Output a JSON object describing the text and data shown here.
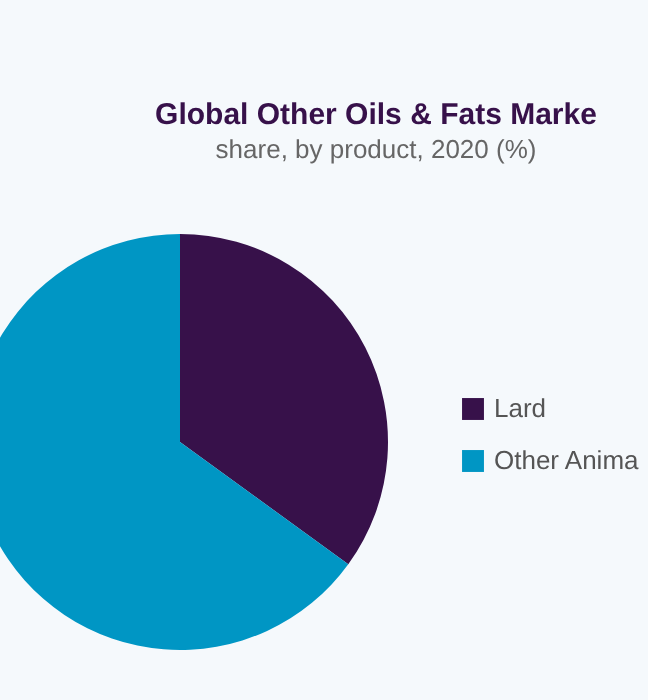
{
  "chart_data": {
    "type": "pie",
    "title": "Global Other Oils & Fats Marke",
    "subtitle": "share, by product, 2020 (%)",
    "categories": [
      "Lard",
      "Other Anima"
    ],
    "values": [
      35,
      65
    ],
    "colors": [
      "#37114a",
      "#0096c4"
    ],
    "legend": "right"
  }
}
